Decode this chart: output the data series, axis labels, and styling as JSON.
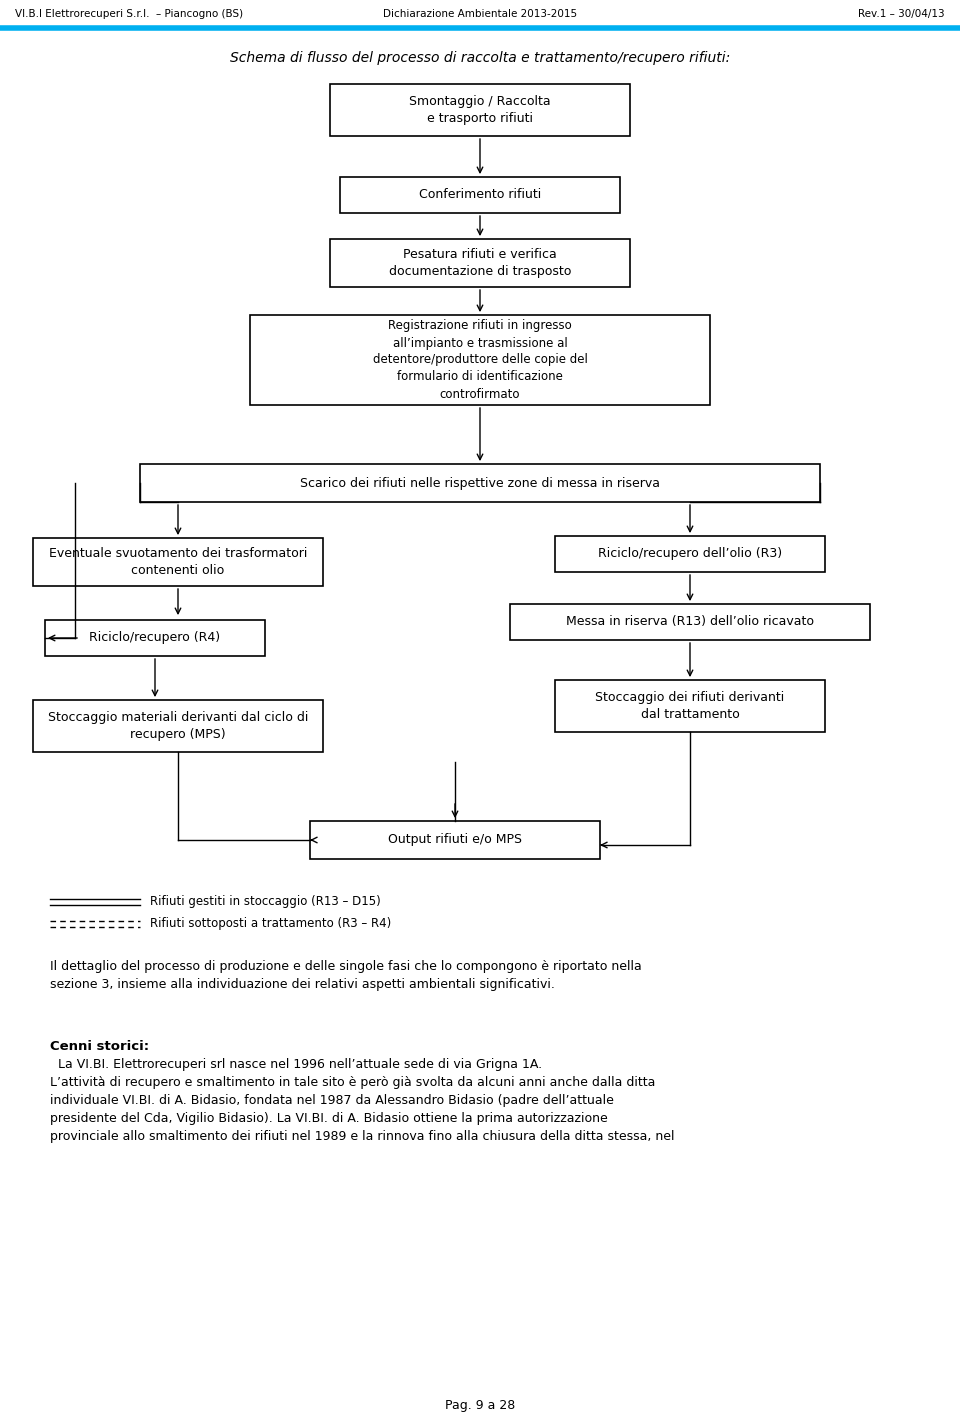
{
  "header_left": "VI.B.I Elettrorecuperi S.r.l.  – Piancogno (BS)",
  "header_center": "Dichiarazione Ambientale 2013-2015",
  "header_right": "Rev.1 – 30/04/13",
  "title": "Schema di flusso del processo di raccolta e trattamento/recupero rifiuti:",
  "bg_color": "#ffffff",
  "box_edge_color": "#000000",
  "text_color": "#000000",
  "header_line_color": "#00b0f0",
  "arrow_color": "#000000",
  "legend_solid": "Rifiuti gestiti in stoccaggio (R13 – D15)",
  "legend_dashed": "Rifiuti sottoposti a trattamento (R3 – R4)",
  "body_text": "Il dettaglio del processo di produzione e delle singole fasi che lo compongono è riportato nella\nsezione 3, insieme alla individuazione dei relativi aspetti ambientali significativi.",
  "cenni_title": "Cenni storici:",
  "cenni_text": "  La VI.BI. Elettrorecuperi srl nasce nel 1996 nell’attuale sede di via Grigna 1A.\nL’attività di recupero e smaltimento in tale sito è però già svolta da alcuni anni anche dalla ditta\nindividuale VI.BI. di A. Bidasio, fondata nel 1987 da Alessandro Bidasio (padre dell’attuale\npresidente del Cda, Vigilio Bidasio). La VI.BI. di A. Bidasio ottiene la prima autorizzazione\nprovinciale allo smaltimento dei rifiuti nel 1989 e la rinnova fino alla chiusura della ditta stessa, nel",
  "footer": "Pag. 9 a 28"
}
